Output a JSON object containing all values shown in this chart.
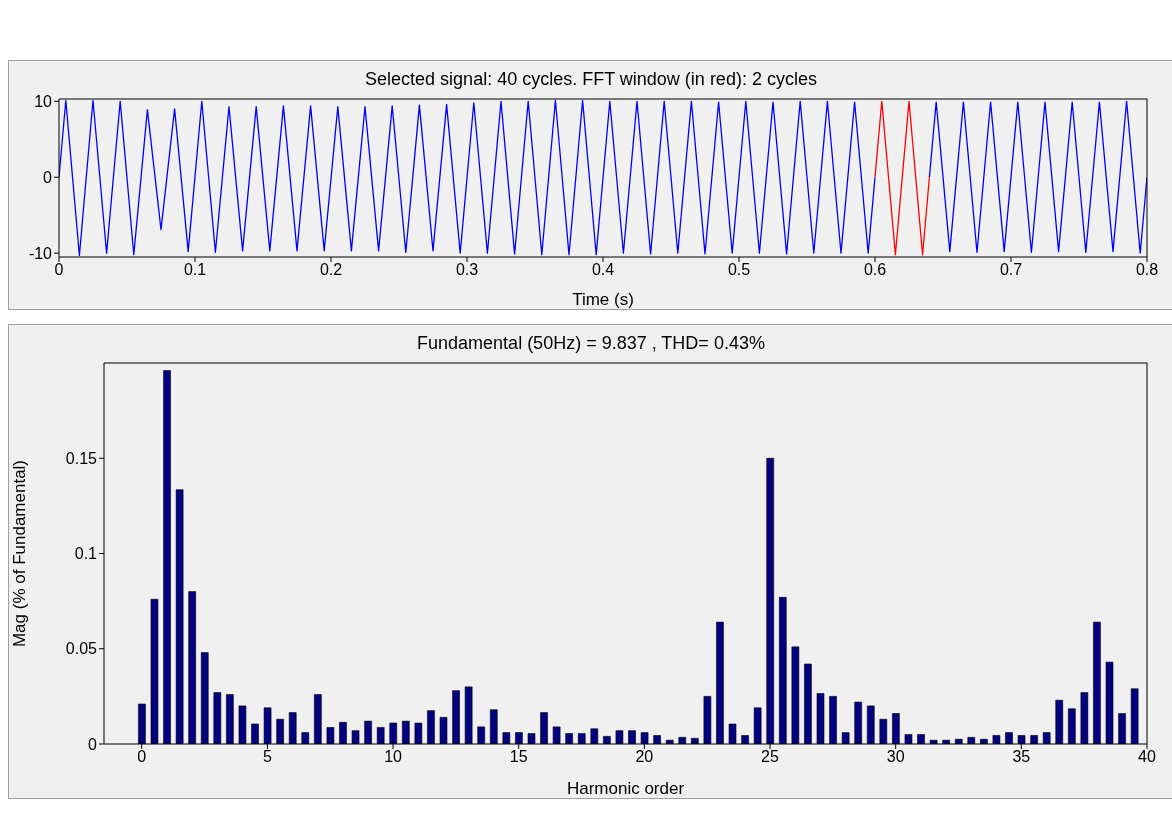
{
  "chart_data": [
    {
      "type": "line",
      "title": "Selected signal: 40 cycles. FFT window (in red): 2 cycles",
      "xlabel": "Time (s)",
      "xlim": [
        0,
        0.8
      ],
      "xticks": [
        0,
        0.1,
        0.2,
        0.3,
        0.4,
        0.5,
        0.6,
        0.7,
        0.8
      ],
      "ylim": [
        -10.5,
        10.3
      ],
      "yticks": [
        -10,
        0,
        10
      ],
      "grid": false,
      "legend": false,
      "marker": "none",
      "line_style": "solid",
      "series": [
        {
          "color": "#0000ff",
          "x": [
            0,
            0.005,
            0.015,
            0.025,
            0.035,
            0.045,
            0.055,
            0.065,
            0.075,
            0.085,
            0.095,
            0.105,
            0.115,
            0.125,
            0.135,
            0.145,
            0.155,
            0.165,
            0.175,
            0.185,
            0.195,
            0.205,
            0.215,
            0.225,
            0.235,
            0.245,
            0.255,
            0.265,
            0.275,
            0.285,
            0.295,
            0.305,
            0.315,
            0.325,
            0.335,
            0.345,
            0.355,
            0.365,
            0.375,
            0.385,
            0.395,
            0.405,
            0.415,
            0.425,
            0.435,
            0.445,
            0.455,
            0.465,
            0.475,
            0.485,
            0.495,
            0.505,
            0.515,
            0.525,
            0.535,
            0.545,
            0.555,
            0.565,
            0.575,
            0.585,
            0.595,
            0.6,
            0.62,
            0.64,
            0.645,
            0.655,
            0.665,
            0.675,
            0.685,
            0.695,
            0.705,
            0.715,
            0.725,
            0.735,
            0.745,
            0.755,
            0.765,
            0.775,
            0.785,
            0.795,
            0.8
          ],
          "values": [
            0,
            10.1,
            -10.3,
            10.1,
            -10,
            10,
            -10.2,
            8.9,
            -6.9,
            9,
            -9.8,
            10,
            -9.9,
            9.3,
            -9.7,
            9.3,
            -9.7,
            9.4,
            -9.7,
            9.4,
            -9.7,
            9.3,
            -9.7,
            9.3,
            -9.7,
            9.4,
            -9.9,
            9.5,
            -9.7,
            9.6,
            -10,
            9.8,
            -10,
            10,
            -10.1,
            10,
            -10.2,
            10.1,
            -10.2,
            10.1,
            -10.2,
            10,
            -10,
            10,
            -10.1,
            10,
            -10,
            10,
            -10.1,
            9.9,
            -10,
            10,
            -10,
            9.9,
            -10.1,
            10,
            -10,
            10,
            -10,
            9.9,
            -10,
            0,
            null,
            0,
            9.9,
            -9.8,
            9.9,
            -9.9,
            9.9,
            -9.8,
            9.9,
            -9.9,
            9.9,
            -9.8,
            9.9,
            -9.9,
            9.9,
            -9.8,
            10,
            -10,
            0
          ]
        },
        {
          "color": "#ff0000",
          "x": [
            0.6,
            0.605,
            0.615,
            0.625,
            0.635,
            0.64
          ],
          "values": [
            0,
            10,
            -10.2,
            10,
            -10.2,
            0
          ]
        }
      ]
    },
    {
      "type": "bar",
      "title": "Fundamental (50Hz) = 9.837 , THD= 0.43%",
      "xlabel": "Harmonic order",
      "ylabel": "Mag (% of Fundamental)",
      "xlim": [
        -1.5,
        40
      ],
      "xticks": [
        0,
        5,
        10,
        15,
        20,
        25,
        30,
        35,
        40
      ],
      "ylim": [
        0,
        0.2
      ],
      "yticks": [
        0,
        0.05,
        0.1,
        0.15
      ],
      "grid": false,
      "legend": false,
      "color": "#000080",
      "x": [
        0,
        0.5,
        1,
        1.5,
        2,
        2.5,
        3,
        3.5,
        4,
        4.5,
        5,
        5.5,
        6,
        6.5,
        7,
        7.5,
        8,
        8.5,
        9,
        9.5,
        10,
        10.5,
        11,
        11.5,
        12,
        12.5,
        13,
        13.5,
        14,
        14.5,
        15,
        15.5,
        16,
        16.5,
        17,
        17.5,
        18,
        18.5,
        19,
        19.5,
        20,
        20.5,
        21,
        21.5,
        22,
        22.5,
        23,
        23.5,
        24,
        24.5,
        25,
        25.5,
        26,
        26.5,
        27,
        27.5,
        28,
        28.5,
        29,
        29.5,
        30,
        30.5,
        31,
        31.5,
        32,
        32.5,
        33,
        33.5,
        34,
        34.5,
        35,
        35.5,
        36,
        36.5,
        37,
        37.5,
        38,
        38.5,
        39,
        39.5
      ],
      "values": [
        0.021,
        0.076,
        0.196,
        0.1335,
        0.08,
        0.048,
        0.027,
        0.026,
        0.02,
        0.0105,
        0.019,
        0.013,
        0.0165,
        0.006,
        0.026,
        0.0087,
        0.0114,
        0.007,
        0.012,
        0.0087,
        0.011,
        0.012,
        0.011,
        0.0175,
        0.014,
        0.028,
        0.03,
        0.009,
        0.018,
        0.006,
        0.006,
        0.0055,
        0.0165,
        0.009,
        0.0055,
        0.0055,
        0.008,
        0.004,
        0.007,
        0.007,
        0.006,
        0.0045,
        0.002,
        0.0035,
        0.003,
        0.025,
        0.064,
        0.0105,
        0.0045,
        0.019,
        0.15,
        0.077,
        0.051,
        0.042,
        0.0265,
        0.025,
        0.006,
        0.022,
        0.02,
        0.013,
        0.016,
        0.005,
        0.005,
        0.002,
        0.002,
        0.0025,
        0.0035,
        0.0025,
        0.0045,
        0.006,
        0.0045,
        0.0045,
        0.006,
        0.023,
        0.0185,
        0.027,
        0.064,
        0.043,
        0.016,
        0.029
      ]
    }
  ]
}
